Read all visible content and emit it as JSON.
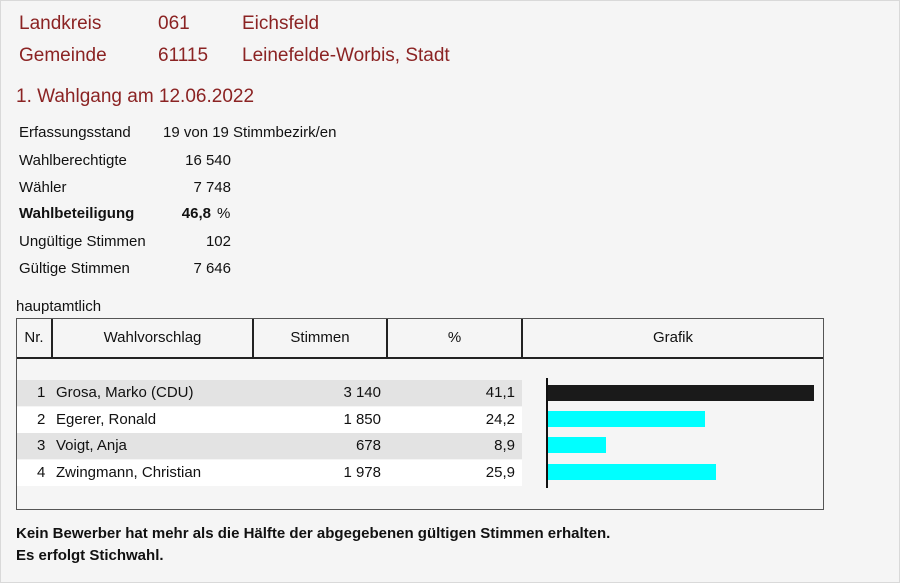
{
  "header": {
    "landkreis": {
      "label": "Landkreis",
      "code": "061",
      "name": "Eichsfeld"
    },
    "gemeinde": {
      "label": "Gemeinde",
      "code": "61115",
      "name": "Leinefelde-Worbis, Stadt"
    }
  },
  "election": {
    "title": "1. Wahlgang am 12.06.2022"
  },
  "stats": {
    "erfassungsstand": {
      "label": "Erfassungsstand",
      "value": "19 von 19 Stimmbezirk/en"
    },
    "wahlberechtigte": {
      "label": "Wahlberechtigte",
      "value": "16 540"
    },
    "waehler": {
      "label": "Wähler",
      "value": "7 748"
    },
    "wahlbeteiligung": {
      "label": "Wahlbeteiligung",
      "value": "46,8",
      "unit": "%"
    },
    "ungueltige": {
      "label": "Ungültige Stimmen",
      "value": "102"
    },
    "gueltige": {
      "label": "Gültige Stimmen",
      "value": "7 646"
    }
  },
  "table": {
    "caption": "hauptamtlich",
    "headers": [
      "Nr.",
      "Wahlvorschlag",
      "Stimmen",
      "%",
      "Grafik"
    ],
    "rows": [
      {
        "nr": "1",
        "name": "Grosa, Marko (CDU)",
        "votes": "3 140",
        "pct": "41,1"
      },
      {
        "nr": "2",
        "name": "Egerer, Ronald",
        "votes": "1 850",
        "pct": "24,2"
      },
      {
        "nr": "3",
        "name": "Voigt, Anja",
        "votes": "678",
        "pct": "8,9"
      },
      {
        "nr": "4",
        "name": "Zwingmann, Christian",
        "votes": "1 978",
        "pct": "25,9"
      }
    ]
  },
  "chart_data": {
    "type": "bar",
    "categories": [
      "Grosa, Marko (CDU)",
      "Egerer, Ronald",
      "Voigt, Anja",
      "Zwingmann, Christian"
    ],
    "values": [
      41.1,
      24.2,
      8.9,
      25.9
    ],
    "colors": [
      "#1a1a1a",
      "#00ffff",
      "#00ffff",
      "#00ffff"
    ],
    "max": 41.1
  },
  "notes": {
    "line1": "Kein Bewerber hat mehr als die Hälfte der abgegebenen gültigen Stimmen erhalten.",
    "line2": "Es erfolgt Stichwahl."
  }
}
